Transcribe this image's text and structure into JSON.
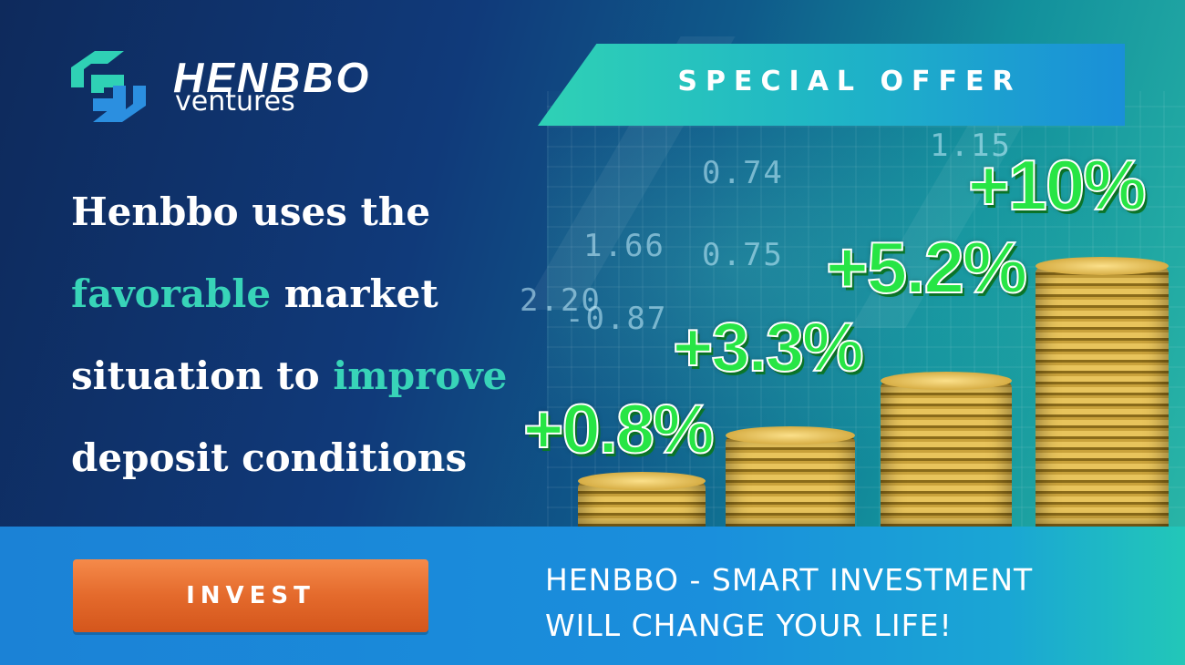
{
  "brand": {
    "name": "HENBBO",
    "sub": "ventures"
  },
  "offer": {
    "label": "SPECIAL OFFER"
  },
  "headline": {
    "line1": "Henbbo uses the",
    "line2_highlight": "favorable",
    "line2_rest": " market",
    "line3_lead": "situation to ",
    "line3_highlight": "improve",
    "line4": "deposit conditions"
  },
  "rates": [
    "+0.8%",
    "+3.3%",
    "+5.2%",
    "+10%"
  ],
  "ticker": [
    "0.74",
    "0.75",
    "1.66",
    "-0.87",
    "2.20",
    "1.15"
  ],
  "cta": {
    "label": "INVEST"
  },
  "tagline": {
    "line1": "HENBBO - SMART INVESTMENT",
    "line2": "WILL CHANGE YOUR LIFE!"
  },
  "colors": {
    "accent_teal": "#38d4b8",
    "rate_green": "#27e545",
    "cta_orange": "#e46a2c",
    "bar_blue": "#1b82d6"
  }
}
